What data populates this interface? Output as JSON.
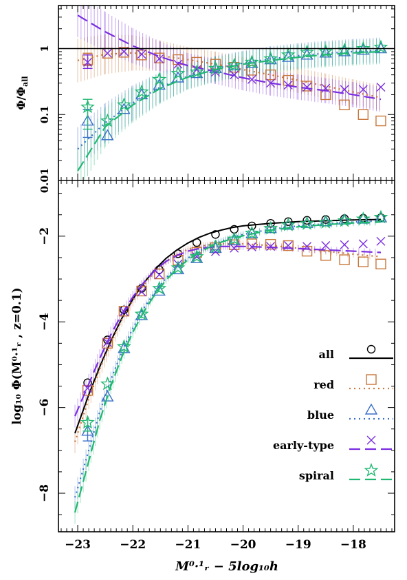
{
  "chart_data": [
    {
      "type": "scatter",
      "panel": "top",
      "ylabel_main": "Φ/Φ",
      "ylabel_sub": "all",
      "ylog": true,
      "ylim": [
        0.01,
        4.5
      ],
      "xlim": [
        -23.35,
        -17.25
      ],
      "yticks": [
        0.01,
        0.1,
        1
      ],
      "ytick_labels": [
        "0.01",
        "0.1",
        "1"
      ],
      "reference_line": 1,
      "series": [
        {
          "key": "red",
          "color": "#c8763a",
          "x": [
            -22.82,
            -22.46,
            -22.16,
            -21.84,
            -21.52,
            -21.18,
            -20.84,
            -20.5,
            -20.16,
            -19.84,
            -19.5,
            -19.18,
            -18.84,
            -18.5,
            -18.16,
            -17.82,
            -17.5
          ],
          "y": [
            0.68,
            0.85,
            0.88,
            0.8,
            0.72,
            0.68,
            0.62,
            0.58,
            0.52,
            0.47,
            0.4,
            0.33,
            0.27,
            0.2,
            0.14,
            0.1,
            0.08
          ],
          "curve_x": [
            -23.0,
            -22.5,
            -22.0,
            -21.5,
            -21.0,
            -20.5,
            -20.0,
            -19.5,
            -19.0,
            -18.5,
            -18.0,
            -17.5
          ],
          "curve_y": [
            0.66,
            0.82,
            0.86,
            0.78,
            0.68,
            0.58,
            0.48,
            0.4,
            0.33,
            0.27,
            0.22,
            0.18
          ]
        },
        {
          "key": "blue",
          "color": "#3a6fc9",
          "x": [
            -22.82,
            -22.46,
            -22.16,
            -21.84,
            -21.52,
            -21.18,
            -20.84,
            -20.5,
            -20.16,
            -19.84,
            -19.5,
            -19.18,
            -18.84,
            -18.5,
            -18.16,
            -17.82,
            -17.5
          ],
          "y": [
            0.08,
            0.048,
            0.12,
            0.2,
            0.28,
            0.36,
            0.42,
            0.5,
            0.55,
            0.6,
            0.68,
            0.74,
            0.8,
            0.86,
            0.9,
            0.95,
            1.0
          ],
          "curve_x": [
            -23.0,
            -22.5,
            -22.0,
            -21.5,
            -21.0,
            -20.5,
            -20.0,
            -19.5,
            -19.0,
            -18.5,
            -18.0,
            -17.5
          ],
          "curve_y": [
            0.03,
            0.075,
            0.15,
            0.26,
            0.38,
            0.5,
            0.6,
            0.7,
            0.78,
            0.85,
            0.9,
            0.95
          ]
        },
        {
          "key": "early-type",
          "color": "#7a2ee0",
          "x": [
            -22.82,
            -22.46,
            -22.16,
            -21.84,
            -21.52,
            -21.18,
            -20.84,
            -20.5,
            -20.16,
            -19.84,
            -19.5,
            -19.18,
            -18.84,
            -18.5,
            -18.16,
            -17.82,
            -17.5
          ],
          "y": [
            0.62,
            0.85,
            0.9,
            0.82,
            0.7,
            0.58,
            0.48,
            0.44,
            0.4,
            0.34,
            0.3,
            0.28,
            0.26,
            0.25,
            0.24,
            0.24,
            0.26
          ],
          "curve_x": [
            -23.0,
            -22.5,
            -22.0,
            -21.5,
            -21.0,
            -20.5,
            -20.0,
            -19.5,
            -19.0,
            -18.5,
            -18.0,
            -17.5
          ],
          "curve_y": [
            3.2,
            1.8,
            1.1,
            0.75,
            0.55,
            0.45,
            0.36,
            0.3,
            0.26,
            0.23,
            0.2,
            0.17
          ]
        },
        {
          "key": "spiral",
          "color": "#1fb871",
          "x": [
            -22.82,
            -22.46,
            -22.16,
            -21.84,
            -21.52,
            -21.18,
            -20.84,
            -20.5,
            -20.16,
            -19.84,
            -19.5,
            -19.18,
            -18.84,
            -18.5,
            -18.16,
            -17.82,
            -17.5
          ],
          "y": [
            0.13,
            0.08,
            0.14,
            0.22,
            0.34,
            0.42,
            0.44,
            0.5,
            0.56,
            0.62,
            0.7,
            0.8,
            0.88,
            0.9,
            0.95,
            1.0,
            1.05
          ],
          "curve_x": [
            -23.0,
            -22.5,
            -22.0,
            -21.5,
            -21.0,
            -20.5,
            -20.0,
            -19.5,
            -19.0,
            -18.5,
            -18.0,
            -17.5
          ],
          "curve_y": [
            0.014,
            0.065,
            0.14,
            0.25,
            0.37,
            0.48,
            0.58,
            0.66,
            0.74,
            0.81,
            0.86,
            0.9
          ]
        }
      ]
    },
    {
      "type": "scatter",
      "panel": "bottom",
      "ylabel": "log₁₀ Φ(M⁰·¹ᵣ , z=0.1)",
      "xlabel": "M⁰·¹ᵣ − 5log₁₀h",
      "ylim": [
        -8.9,
        -0.7
      ],
      "xlim": [
        -23.35,
        -17.25
      ],
      "yticks": [
        -8,
        -6,
        -4,
        -2
      ],
      "xticks": [
        -23,
        -22,
        -21,
        -20,
        -19,
        -18
      ],
      "series": [
        {
          "key": "all",
          "name": "all",
          "color": "#000000",
          "marker": "circle",
          "x": [
            -22.82,
            -22.46,
            -22.16,
            -21.84,
            -21.52,
            -21.18,
            -20.84,
            -20.5,
            -20.16,
            -19.84,
            -19.5,
            -19.18,
            -18.84,
            -18.5,
            -18.16,
            -17.82,
            -17.5
          ],
          "y": [
            -5.42,
            -4.42,
            -3.72,
            -3.22,
            -2.78,
            -2.41,
            -2.15,
            -1.96,
            -1.84,
            -1.76,
            -1.7,
            -1.66,
            -1.63,
            -1.61,
            -1.59,
            -1.58,
            -1.57
          ],
          "curve_x": [
            -23.05,
            -22.8,
            -22.6,
            -22.4,
            -22.2,
            -22.0,
            -21.8,
            -21.6,
            -21.4,
            -21.2,
            -21.0,
            -20.8,
            -20.6,
            -20.4,
            -20.2,
            -20.0,
            -19.5,
            -19.0,
            -18.5,
            -18.0,
            -17.5
          ],
          "curve_y": [
            -6.6,
            -5.7,
            -5.05,
            -4.45,
            -3.92,
            -3.47,
            -3.09,
            -2.78,
            -2.52,
            -2.32,
            -2.16,
            -2.03,
            -1.93,
            -1.86,
            -1.8,
            -1.76,
            -1.7,
            -1.66,
            -1.64,
            -1.62,
            -1.61
          ]
        },
        {
          "key": "red",
          "name": "red",
          "color": "#c8763a",
          "marker": "square",
          "x": [
            -22.82,
            -22.46,
            -22.16,
            -21.84,
            -21.52,
            -21.18,
            -20.84,
            -20.5,
            -20.16,
            -19.84,
            -19.5,
            -19.18,
            -18.84,
            -18.5,
            -18.16,
            -17.82,
            -17.5
          ],
          "y": [
            -5.6,
            -4.5,
            -3.75,
            -3.28,
            -2.88,
            -2.56,
            -2.38,
            -2.27,
            -2.2,
            -2.18,
            -2.19,
            -2.22,
            -2.35,
            -2.45,
            -2.55,
            -2.6,
            -2.65
          ],
          "curve_x": [
            -23.05,
            -22.8,
            -22.6,
            -22.4,
            -22.2,
            -22.0,
            -21.8,
            -21.6,
            -21.4,
            -21.2,
            -21.0,
            -20.8,
            -20.6,
            -20.4,
            -20.2,
            -20.0,
            -19.5,
            -19.0,
            -18.5,
            -18.0,
            -17.5
          ],
          "curve_y": [
            -6.8,
            -5.8,
            -5.1,
            -4.5,
            -3.95,
            -3.5,
            -3.13,
            -2.83,
            -2.6,
            -2.43,
            -2.31,
            -2.24,
            -2.2,
            -2.18,
            -2.18,
            -2.18,
            -2.22,
            -2.28,
            -2.35,
            -2.42,
            -2.48
          ]
        },
        {
          "key": "blue",
          "name": "blue",
          "color": "#3a6fc9",
          "marker": "triangle",
          "x": [
            -22.82,
            -22.46,
            -22.16,
            -21.84,
            -21.52,
            -21.18,
            -20.84,
            -20.5,
            -20.16,
            -19.84,
            -19.5,
            -19.18,
            -18.84,
            -18.5,
            -18.16,
            -17.82,
            -17.5
          ],
          "y": [
            -6.55,
            -5.75,
            -4.62,
            -3.85,
            -3.28,
            -2.78,
            -2.52,
            -2.28,
            -2.1,
            -1.94,
            -1.82,
            -1.74,
            -1.7,
            -1.66,
            -1.62,
            -1.6,
            -1.57
          ],
          "curve_x": [
            -23.05,
            -22.8,
            -22.6,
            -22.4,
            -22.2,
            -22.0,
            -21.8,
            -21.6,
            -21.4,
            -21.2,
            -21.0,
            -20.8,
            -20.6,
            -20.4,
            -20.2,
            -20.0,
            -19.5,
            -19.0,
            -18.5,
            -18.0,
            -17.5
          ],
          "curve_y": [
            -8.1,
            -7.0,
            -6.1,
            -5.35,
            -4.7,
            -4.15,
            -3.68,
            -3.3,
            -2.98,
            -2.72,
            -2.51,
            -2.35,
            -2.22,
            -2.12,
            -2.03,
            -1.96,
            -1.84,
            -1.76,
            -1.71,
            -1.67,
            -1.64
          ]
        },
        {
          "key": "early-type",
          "name": "early-type",
          "color": "#7a2ee0",
          "marker": "cross",
          "x": [
            -22.82,
            -22.46,
            -22.16,
            -21.84,
            -21.52,
            -21.18,
            -20.84,
            -20.5,
            -20.16,
            -19.84,
            -19.5,
            -19.18,
            -18.84,
            -18.5,
            -18.16,
            -17.82,
            -17.5
          ],
          "y": [
            -5.55,
            -4.48,
            -3.76,
            -3.3,
            -2.9,
            -2.65,
            -2.48,
            -2.36,
            -2.28,
            -2.25,
            -2.24,
            -2.22,
            -2.24,
            -2.22,
            -2.2,
            -2.18,
            -2.12
          ],
          "curve_x": [
            -23.05,
            -22.8,
            -22.6,
            -22.4,
            -22.2,
            -22.0,
            -21.8,
            -21.6,
            -21.4,
            -21.2,
            -21.0,
            -20.8,
            -20.6,
            -20.4,
            -20.2,
            -20.0,
            -19.5,
            -19.0,
            -18.5,
            -18.0,
            -17.5
          ],
          "curve_y": [
            -6.2,
            -5.45,
            -4.85,
            -4.3,
            -3.82,
            -3.42,
            -3.08,
            -2.8,
            -2.59,
            -2.45,
            -2.35,
            -2.29,
            -2.26,
            -2.24,
            -2.24,
            -2.24,
            -2.26,
            -2.29,
            -2.32,
            -2.35,
            -2.38
          ]
        },
        {
          "key": "spiral",
          "name": "spiral",
          "color": "#1fb871",
          "marker": "star",
          "x": [
            -22.82,
            -22.46,
            -22.16,
            -21.84,
            -21.52,
            -21.18,
            -20.84,
            -20.5,
            -20.16,
            -19.84,
            -19.5,
            -19.18,
            -18.84,
            -18.5,
            -18.16,
            -17.82,
            -17.5
          ],
          "y": [
            -6.35,
            -5.45,
            -4.58,
            -3.82,
            -3.22,
            -2.74,
            -2.48,
            -2.25,
            -2.07,
            -1.93,
            -1.82,
            -1.74,
            -1.71,
            -1.68,
            -1.64,
            -1.6,
            -1.56
          ],
          "curve_x": [
            -23.05,
            -22.8,
            -22.6,
            -22.4,
            -22.2,
            -22.0,
            -21.8,
            -21.6,
            -21.4,
            -21.2,
            -21.0,
            -20.8,
            -20.6,
            -20.4,
            -20.2,
            -20.0,
            -19.5,
            -19.0,
            -18.5,
            -18.0,
            -17.5
          ],
          "curve_y": [
            -8.45,
            -7.25,
            -6.3,
            -5.5,
            -4.82,
            -4.24,
            -3.76,
            -3.36,
            -3.03,
            -2.76,
            -2.55,
            -2.38,
            -2.25,
            -2.14,
            -2.06,
            -1.99,
            -1.86,
            -1.78,
            -1.73,
            -1.69,
            -1.67
          ]
        }
      ],
      "legend": {
        "placement": "bottom-right",
        "entries": [
          {
            "label": "all",
            "marker": "circle",
            "color": "#000000",
            "dash": ""
          },
          {
            "label": "red",
            "marker": "square",
            "color": "#c8763a",
            "dash": "dots"
          },
          {
            "label": "blue",
            "marker": "triangle",
            "color": "#3a6fc9",
            "dash": "dots"
          },
          {
            "label": "early-type",
            "marker": "cross",
            "color": "#7a2ee0",
            "dash": "long"
          },
          {
            "label": "spiral",
            "marker": "star",
            "color": "#1fb871",
            "dash": "long"
          }
        ]
      }
    }
  ]
}
